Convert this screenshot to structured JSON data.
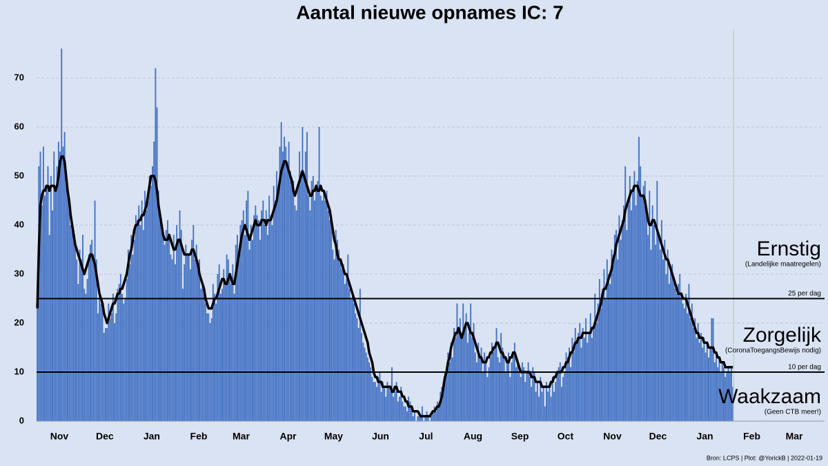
{
  "chart_data": {
    "type": "bar",
    "title": "Aantal nieuwe opnames IC:  7",
    "source": "Bron: LCPS | Plot: @YorickB |  2022-01-19",
    "xlim": [
      0,
      520
    ],
    "xticks": [
      {
        "value": 15,
        "label": "Nov"
      },
      {
        "value": 45,
        "label": "Dec"
      },
      {
        "value": 76,
        "label": "Jan"
      },
      {
        "value": 107,
        "label": "Feb"
      },
      {
        "value": 135,
        "label": "Mar"
      },
      {
        "value": 166,
        "label": "Apr"
      },
      {
        "value": 196,
        "label": "May"
      },
      {
        "value": 227,
        "label": "Jun"
      },
      {
        "value": 257,
        "label": "Jul"
      },
      {
        "value": 288,
        "label": "Aug"
      },
      {
        "value": 319,
        "label": "Sep"
      },
      {
        "value": 349,
        "label": "Oct"
      },
      {
        "value": 380,
        "label": "Nov"
      },
      {
        "value": 410,
        "label": "Dec"
      },
      {
        "value": 441,
        "label": "Jan"
      },
      {
        "value": 472,
        "label": "Feb"
      },
      {
        "value": 500,
        "label": "Mar"
      }
    ],
    "ylim": [
      0,
      80
    ],
    "yticks": [
      0,
      10,
      20,
      30,
      40,
      50,
      60,
      70
    ],
    "grid": true,
    "thresholds": [
      {
        "value": 25,
        "label": "25 per dag"
      },
      {
        "value": 10,
        "label": "10 per dag"
      }
    ],
    "zones": [
      {
        "name": "Ernstig",
        "note": "(Landelijke maatregelen)"
      },
      {
        "name": "Zorgelijk",
        "note": "(CoronaToegangsBewijs nodig)"
      },
      {
        "name": "Waakzaam",
        "note": "(Geen CTB meer!)"
      }
    ],
    "series": [
      {
        "type": "bar",
        "color": "#4472c4",
        "values": [
          23,
          52,
          55,
          44,
          56,
          46,
          48,
          52,
          38,
          50,
          43,
          55,
          48,
          52,
          57,
          55,
          76,
          56,
          59,
          50,
          48,
          46,
          40,
          39,
          38,
          36,
          33,
          28,
          35,
          33,
          38,
          27,
          26,
          29,
          34,
          36,
          37,
          34,
          45,
          33,
          22,
          26,
          24,
          23,
          18,
          19,
          19,
          24,
          21,
          22,
          26,
          20,
          22,
          27,
          28,
          30,
          26,
          24,
          25,
          29,
          35,
          32,
          38,
          34,
          37,
          42,
          41,
          44,
          40,
          45,
          39,
          47,
          43,
          46,
          50,
          48,
          52,
          57,
          72,
          64,
          47,
          43,
          39,
          38,
          36,
          39,
          41,
          37,
          34,
          33,
          38,
          32,
          40,
          37,
          43,
          39,
          27,
          32,
          36,
          34,
          34,
          31,
          37,
          40,
          33,
          36,
          32,
          33,
          27,
          28,
          26,
          24,
          22,
          22,
          20,
          21,
          28,
          26,
          24,
          30,
          32,
          26,
          27,
          31,
          28,
          34,
          33,
          30,
          28,
          32,
          26,
          36,
          38,
          33,
          40,
          41,
          43,
          38,
          45,
          47,
          35,
          40,
          37,
          42,
          44,
          42,
          41,
          37,
          43,
          45,
          40,
          43,
          38,
          46,
          42,
          40,
          48,
          45,
          51,
          48,
          56,
          61,
          55,
          58,
          56,
          53,
          57,
          51,
          48,
          49,
          44,
          43,
          48,
          55,
          51,
          60,
          50,
          55,
          59,
          46,
          43,
          49,
          50,
          45,
          47,
          49,
          60,
          46,
          45,
          47,
          45,
          47,
          43,
          41,
          42,
          35,
          33,
          39,
          37,
          35,
          33,
          31,
          32,
          28,
          29,
          34,
          27,
          25,
          26,
          24,
          22,
          21,
          19,
          27,
          18,
          16,
          15,
          14,
          13,
          12,
          11,
          9,
          8,
          8,
          7,
          9,
          10,
          6,
          8,
          7,
          5,
          8,
          7,
          6,
          11,
          5,
          6,
          8,
          4,
          5,
          7,
          4,
          3,
          3,
          2,
          5,
          4,
          3,
          1,
          2,
          0,
          1,
          2,
          1,
          3,
          0,
          1,
          2,
          1,
          0,
          1,
          2,
          3,
          2,
          4,
          3,
          6,
          7,
          8,
          10,
          11,
          14,
          12,
          16,
          13,
          19,
          17,
          24,
          18,
          21,
          17,
          24,
          19,
          22,
          16,
          18,
          24,
          17,
          20,
          14,
          12,
          16,
          13,
          15,
          10,
          14,
          12,
          9,
          11,
          13,
          16,
          14,
          15,
          19,
          13,
          12,
          18,
          15,
          13,
          10,
          12,
          14,
          9,
          12,
          14,
          16,
          11,
          12,
          10,
          9,
          12,
          11,
          8,
          10,
          12,
          9,
          7,
          11,
          10,
          6,
          8,
          5,
          9,
          6,
          7,
          3,
          8,
          6,
          7,
          5,
          9,
          6,
          8,
          10,
          11,
          12,
          7,
          9,
          10,
          14,
          13,
          15,
          11,
          17,
          14,
          19,
          16,
          18,
          20,
          15,
          19,
          17,
          21,
          16,
          18,
          22,
          17,
          19,
          26,
          20,
          24,
          29,
          23,
          27,
          31,
          25,
          33,
          30,
          28,
          35,
          34,
          38,
          39,
          33,
          42,
          37,
          41,
          44,
          52,
          39,
          45,
          50,
          43,
          47,
          51,
          44,
          49,
          58,
          52,
          46,
          48,
          49,
          42,
          38,
          47,
          35,
          44,
          40,
          36,
          49,
          38,
          35,
          41,
          33,
          37,
          30,
          35,
          28,
          31,
          32,
          29,
          27,
          26,
          28,
          30,
          25,
          24,
          23,
          26,
          22,
          28,
          21,
          24,
          19,
          21,
          17,
          20,
          16,
          18,
          15,
          17,
          14,
          16,
          13,
          15,
          21,
          21,
          12,
          14,
          11,
          13,
          10,
          12,
          11,
          9,
          10,
          11,
          10,
          11,
          7
        ]
      },
      {
        "type": "line",
        "color": "#000000",
        "values": [
          23,
          35,
          44,
          46,
          47,
          47,
          48,
          48,
          47,
          48,
          48,
          48,
          47,
          48,
          50,
          53,
          54,
          54,
          53,
          50,
          47,
          45,
          42,
          40,
          38,
          36,
          35,
          34,
          33,
          32,
          31,
          30,
          31,
          32,
          33,
          34,
          34,
          33,
          32,
          30,
          28,
          26,
          25,
          24,
          22,
          21,
          20,
          21,
          22,
          23,
          24,
          24,
          25,
          26,
          26,
          27,
          27,
          28,
          29,
          30,
          32,
          34,
          35,
          37,
          39,
          40,
          40,
          41,
          41,
          42,
          42,
          43,
          44,
          46,
          48,
          50,
          50,
          50,
          49,
          47,
          44,
          42,
          40,
          38,
          37,
          37,
          37,
          38,
          37,
          36,
          35,
          35,
          36,
          37,
          37,
          36,
          35,
          34,
          34,
          34,
          34,
          34,
          35,
          35,
          34,
          33,
          32,
          30,
          29,
          28,
          27,
          25,
          24,
          23,
          23,
          23,
          24,
          25,
          25,
          26,
          27,
          28,
          29,
          29,
          28,
          28,
          29,
          30,
          29,
          28,
          28,
          30,
          32,
          34,
          36,
          38,
          39,
          40,
          39,
          38,
          37,
          38,
          39,
          40,
          41,
          40,
          40,
          40,
          41,
          41,
          41,
          40,
          41,
          41,
          41,
          42,
          43,
          44,
          45,
          47,
          49,
          51,
          52,
          53,
          53,
          52,
          51,
          50,
          49,
          47,
          46,
          47,
          48,
          49,
          50,
          51,
          50,
          49,
          48,
          47,
          46,
          46,
          47,
          47,
          48,
          47,
          47,
          48,
          47,
          47,
          46,
          45,
          44,
          43,
          41,
          39,
          37,
          36,
          34,
          33,
          33,
          32,
          31,
          30,
          30,
          29,
          28,
          27,
          26,
          25,
          24,
          23,
          22,
          21,
          20,
          19,
          18,
          17,
          16,
          14,
          13,
          12,
          10,
          9,
          9,
          8,
          8,
          8,
          7,
          7,
          7,
          7,
          7,
          7,
          6,
          6,
          7,
          7,
          6,
          6,
          6,
          5,
          5,
          4,
          4,
          3,
          3,
          3,
          2,
          2,
          2,
          2,
          1.5,
          1,
          1,
          1,
          1,
          1,
          1,
          1,
          1.5,
          2,
          2,
          2.5,
          3,
          3,
          4,
          5,
          7,
          9,
          10,
          12,
          13,
          15,
          16,
          17,
          18,
          18,
          19,
          18,
          17,
          18,
          19,
          20,
          20,
          19,
          18,
          18,
          17,
          16,
          15,
          14,
          13,
          13,
          12,
          12,
          12,
          13,
          13,
          14,
          14,
          15,
          15,
          16,
          16,
          15,
          14,
          14,
          13,
          13,
          12,
          12,
          13,
          13,
          14,
          14,
          13,
          12,
          11,
          10,
          10,
          10,
          10,
          10,
          10,
          10,
          9,
          9,
          9,
          8,
          8,
          8,
          8,
          7,
          7,
          7,
          7,
          7,
          7,
          8,
          8,
          9,
          9,
          10,
          10,
          10,
          10,
          11,
          11,
          12,
          12,
          13,
          14,
          14,
          15,
          16,
          16,
          17,
          17,
          17,
          18,
          18,
          18,
          18,
          18,
          18,
          19,
          19,
          20,
          21,
          22,
          23,
          24,
          26,
          27,
          27,
          28,
          29,
          30,
          31,
          33,
          34,
          36,
          37,
          38,
          39,
          40,
          41,
          43,
          44,
          45,
          46,
          47,
          47,
          48,
          48,
          48,
          47,
          46,
          46,
          46,
          45,
          43,
          41,
          40,
          40,
          41,
          41,
          40,
          39,
          38,
          37,
          36,
          35,
          34,
          33,
          33,
          32,
          31,
          30,
          29,
          28,
          27,
          26,
          26,
          26,
          25,
          25,
          25,
          24,
          23,
          22,
          21,
          20,
          19,
          18,
          18,
          17,
          17,
          17,
          16,
          16,
          16,
          15,
          15,
          15,
          15,
          14,
          14,
          13,
          13,
          12,
          12,
          12,
          11,
          11,
          11,
          11,
          11,
          11
        ]
      }
    ]
  }
}
